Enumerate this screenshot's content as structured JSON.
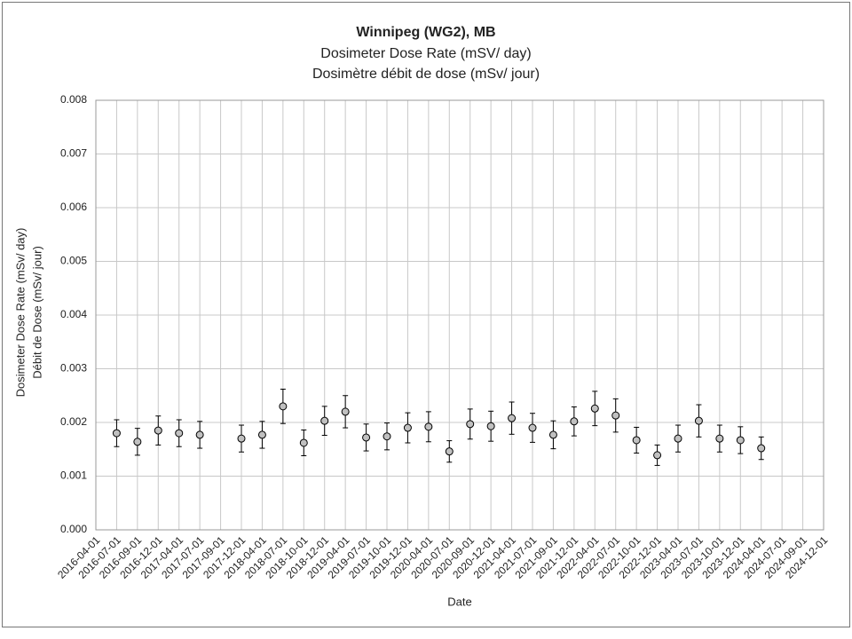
{
  "chart_data": {
    "type": "errorbar",
    "title": "Winnipeg (WG2), MB",
    "subtitle": [
      "Dosimeter Dose Rate (mSV/ day)",
      "Dosimètre débit de dose (mSv/ jour)"
    ],
    "x_label": "Date",
    "y_label": [
      "Dosimeter Dose Rate (mSv/ day)",
      "Débit de Dose (mSv/ jour)"
    ],
    "categories": [
      "2016-04-01",
      "2016-07-01",
      "2016-09-01",
      "2016-12-01",
      "2017-04-01",
      "2017-07-01",
      "2017-09-01",
      "2017-12-01",
      "2018-04-01",
      "2018-07-01",
      "2018-10-01",
      "2018-12-01",
      "2019-04-01",
      "2019-07-01",
      "2019-10-01",
      "2019-12-01",
      "2020-04-01",
      "2020-07-01",
      "2020-09-01",
      "2020-12-01",
      "2021-04-01",
      "2021-07-01",
      "2021-09-01",
      "2021-12-01",
      "2022-04-01",
      "2022-07-01",
      "2022-10-01",
      "2022-12-01",
      "2023-04-01",
      "2023-07-01",
      "2023-10-01",
      "2023-12-01",
      "2024-04-01",
      "2024-07-01",
      "2024-09-01",
      "2024-12-01"
    ],
    "values": [
      null,
      0.0018,
      0.00164,
      0.00185,
      0.0018,
      0.00177,
      null,
      0.0017,
      0.00177,
      0.0023,
      0.00162,
      0.00203,
      0.0022,
      0.00172,
      0.00174,
      0.0019,
      0.00192,
      0.00146,
      0.00197,
      0.00193,
      0.00208,
      0.0019,
      0.00177,
      0.00202,
      0.00226,
      0.00213,
      0.00167,
      0.00139,
      0.0017,
      0.00203,
      0.0017,
      0.00167,
      0.00152,
      null,
      null,
      null
    ],
    "errors": [
      null,
      0.00025,
      0.00025,
      0.00027,
      0.00025,
      0.00025,
      null,
      0.00025,
      0.00025,
      0.00032,
      0.00024,
      0.00027,
      0.0003,
      0.00025,
      0.00025,
      0.00028,
      0.00028,
      0.0002,
      0.00028,
      0.00028,
      0.0003,
      0.00027,
      0.00026,
      0.00027,
      0.00032,
      0.00031,
      0.00024,
      0.00019,
      0.00025,
      0.0003,
      0.00025,
      0.00025,
      0.00021,
      null,
      null,
      null
    ],
    "color": "#c0c0c0",
    "ylim": [
      0,
      0.008
    ],
    "yticks": [
      {
        "value": 0,
        "label": "0.000"
      },
      {
        "value": 0.001,
        "label": "0.001"
      },
      {
        "value": 0.002,
        "label": "0.002"
      },
      {
        "value": 0.003,
        "label": "0.003"
      },
      {
        "value": 0.004,
        "label": "0.004"
      },
      {
        "value": 0.005,
        "label": "0.005"
      },
      {
        "value": 0.006,
        "label": "0.006"
      },
      {
        "value": 0.007,
        "label": "0.007"
      },
      {
        "value": 0.008,
        "label": "0.008"
      }
    ],
    "grid": true
  }
}
